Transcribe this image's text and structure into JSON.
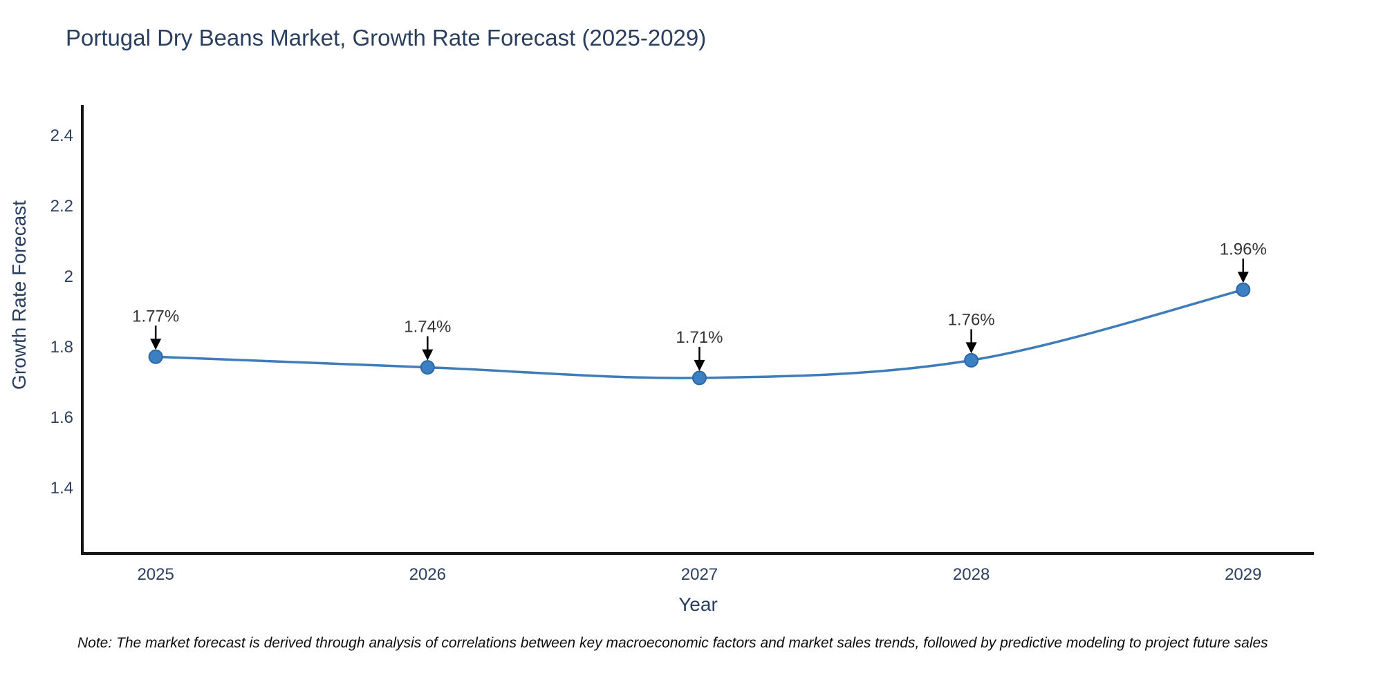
{
  "chart_data": {
    "type": "line",
    "title": "Portugal Dry Beans Market, Growth Rate Forecast (2025-2029)",
    "xlabel": "Year",
    "ylabel": "Growth Rate Forecast",
    "x": [
      2025,
      2026,
      2027,
      2028,
      2029
    ],
    "series": [
      {
        "name": "Growth Rate Forecast",
        "values": [
          1.77,
          1.74,
          1.71,
          1.76,
          1.96
        ]
      }
    ],
    "point_labels": [
      "1.77%",
      "1.74%",
      "1.71%",
      "1.76%",
      "1.96%"
    ],
    "xtick_labels": [
      "2025",
      "2026",
      "2027",
      "2028",
      "2029"
    ],
    "yticks": [
      1.4,
      1.6,
      1.8,
      2.0,
      2.2,
      2.4
    ],
    "ytick_labels": [
      "1.4",
      "1.6",
      "1.8",
      "2",
      "2.2",
      "2.4"
    ],
    "xlim": [
      2024.73,
      2029.26
    ],
    "ylim": [
      1.212,
      2.484
    ],
    "grid": false,
    "legend": false,
    "line_shape": "spline"
  },
  "note": {
    "text": "Note: The market forecast is derived through analysis of correlations between key macroeconomic factors and market sales trends, followed by predictive modeling to project future sales"
  },
  "colors": {
    "line": "#3f7cba",
    "marker_fill": "#3b80c2",
    "marker_edge": "#2d66a3",
    "axis_line": "#141414",
    "tick_text": "#2a3f5f",
    "annotation_text": "#333333",
    "arrow": "#000000",
    "background": "#ffffff"
  }
}
